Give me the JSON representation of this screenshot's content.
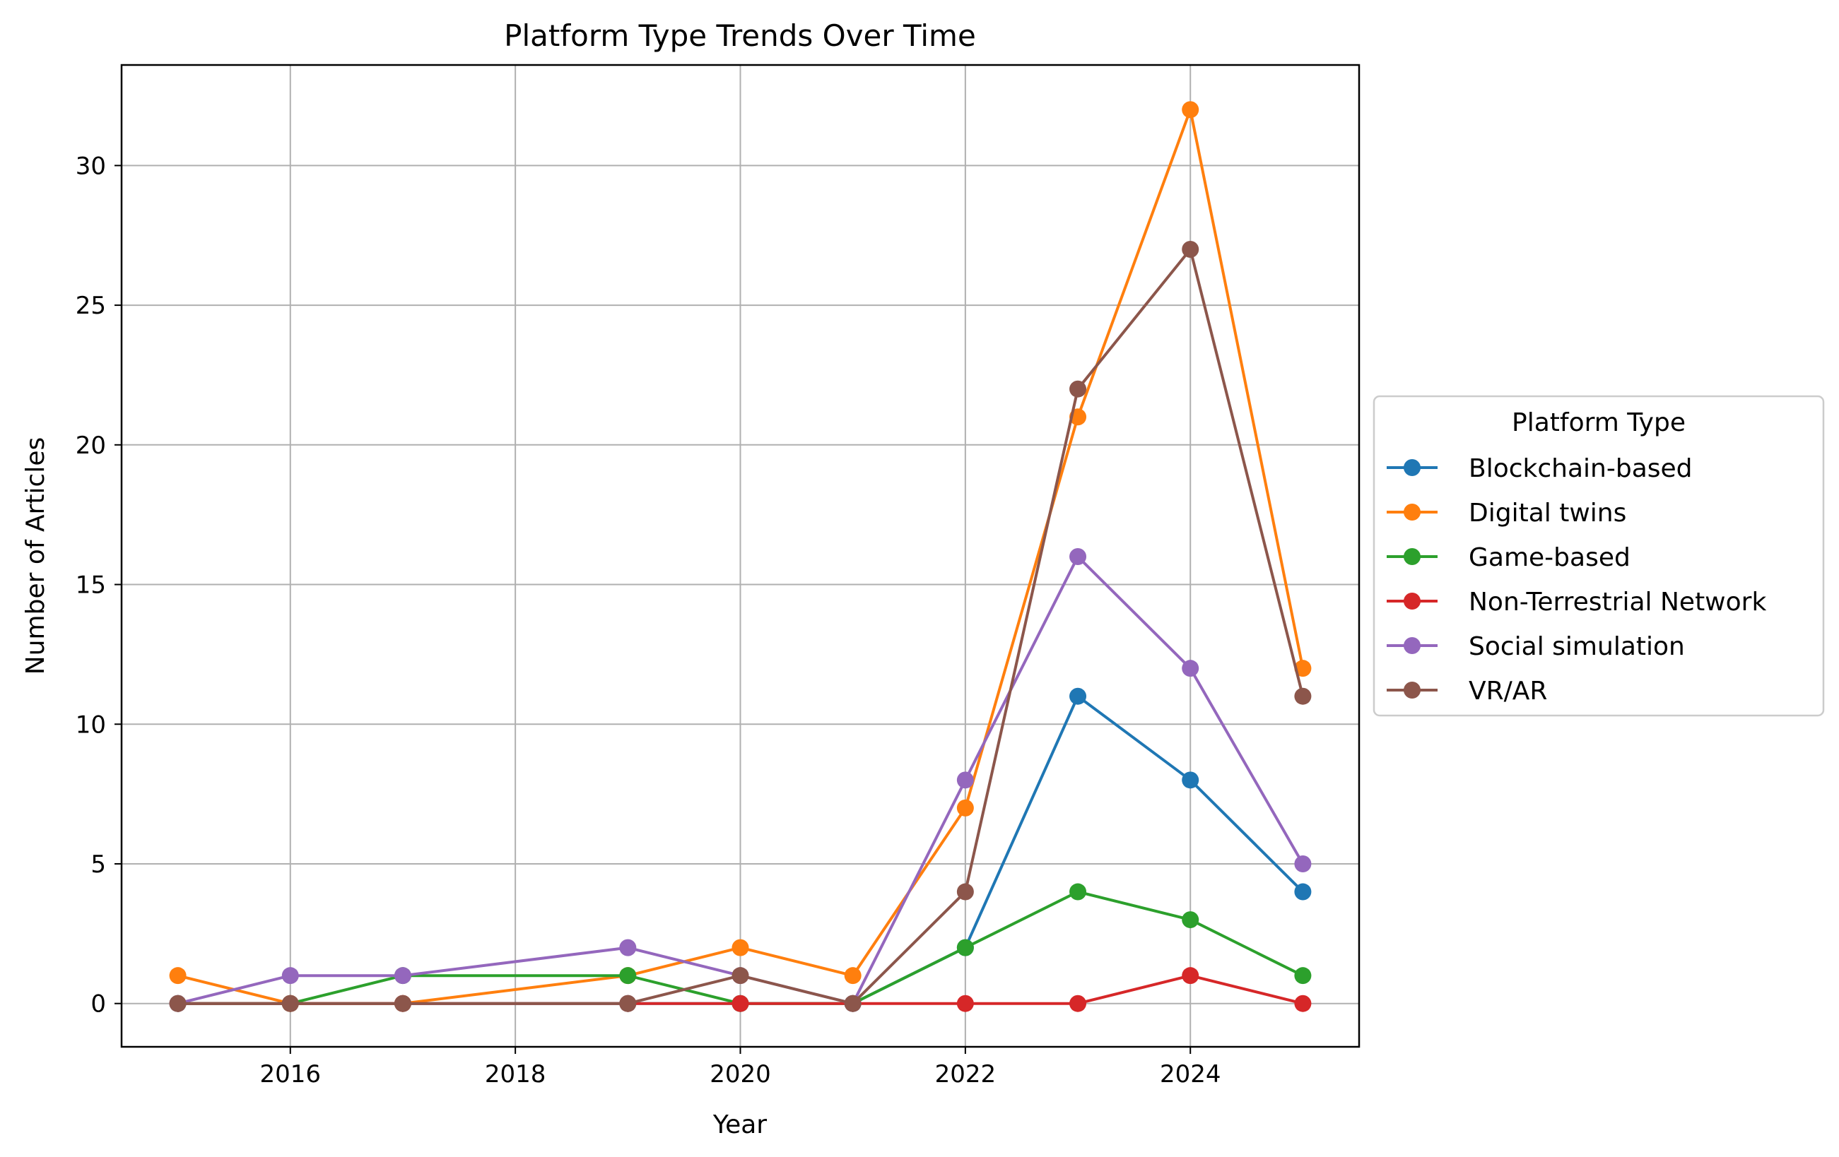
{
  "chart_data": {
    "type": "line",
    "title": "Platform Type Trends Over Time",
    "xlabel": "Year",
    "ylabel": "Number of Articles",
    "xlim": [
      2014.5,
      2025.5
    ],
    "ylim": [
      -1.55,
      33.6
    ],
    "xticks": [
      2016,
      2018,
      2020,
      2022,
      2024
    ],
    "yticks": [
      0,
      5,
      10,
      15,
      20,
      25,
      30
    ],
    "grid": true,
    "legend": {
      "title": "Platform Type",
      "placement": "center-right-outside"
    },
    "series": [
      {
        "name": "Blockchain-based",
        "color": "#1f77b4",
        "x": [
          2015,
          2016,
          2017,
          2019,
          2020,
          2021,
          2022,
          2023,
          2024,
          2025
        ],
        "y": [
          0,
          0,
          0,
          0,
          0,
          0,
          2,
          11,
          8,
          4
        ]
      },
      {
        "name": "Digital twins",
        "color": "#ff7f0e",
        "x": [
          2015,
          2016,
          2017,
          2019,
          2020,
          2021,
          2022,
          2023,
          2024,
          2025
        ],
        "y": [
          1,
          0,
          0,
          1,
          2,
          1,
          7,
          21,
          32,
          12
        ]
      },
      {
        "name": "Game-based",
        "color": "#2ca02c",
        "x": [
          2015,
          2016,
          2017,
          2019,
          2020,
          2021,
          2022,
          2023,
          2024,
          2025
        ],
        "y": [
          0,
          0,
          1,
          1,
          0,
          0,
          2,
          4,
          3,
          1
        ]
      },
      {
        "name": "Non-Terrestrial Network",
        "color": "#d62728",
        "x": [
          2015,
          2016,
          2017,
          2019,
          2020,
          2021,
          2022,
          2023,
          2024,
          2025
        ],
        "y": [
          0,
          0,
          0,
          0,
          0,
          0,
          0,
          0,
          1,
          0
        ]
      },
      {
        "name": "Social simulation",
        "color": "#9467bd",
        "x": [
          2015,
          2016,
          2017,
          2019,
          2020,
          2021,
          2022,
          2023,
          2024,
          2025
        ],
        "y": [
          0,
          1,
          1,
          2,
          1,
          0,
          8,
          16,
          12,
          5
        ]
      },
      {
        "name": "VR/AR",
        "color": "#8c564b",
        "x": [
          2015,
          2016,
          2017,
          2019,
          2020,
          2021,
          2022,
          2023,
          2024,
          2025
        ],
        "y": [
          0,
          0,
          0,
          0,
          1,
          0,
          4,
          22,
          27,
          11
        ]
      }
    ]
  }
}
